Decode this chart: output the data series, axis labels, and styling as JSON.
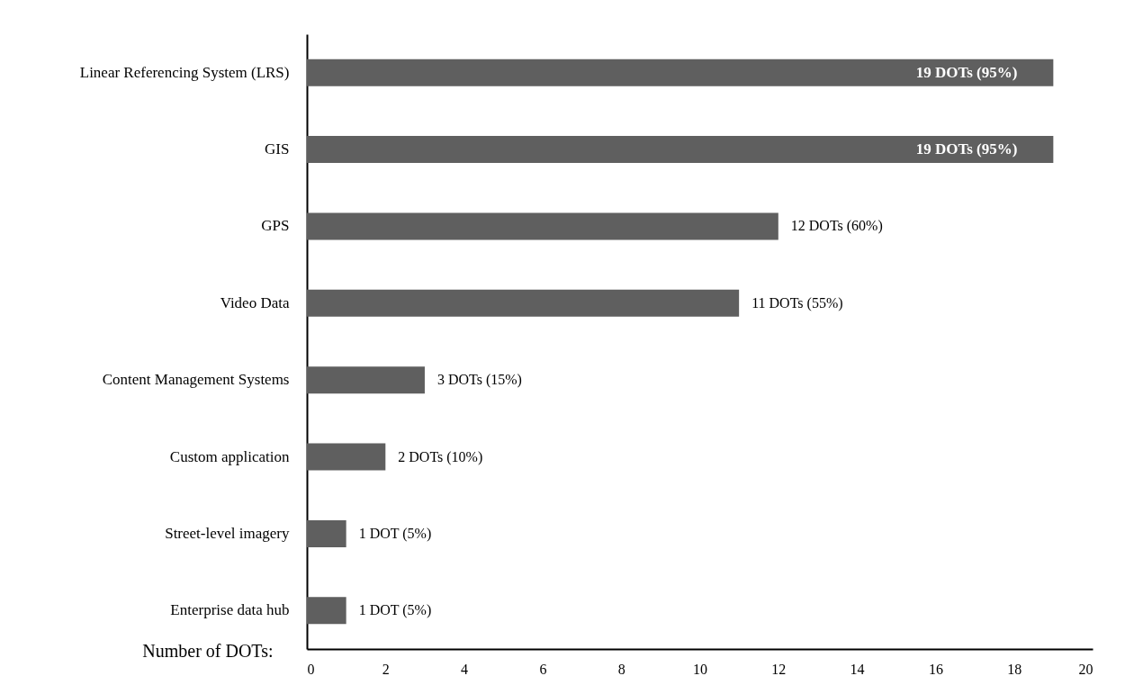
{
  "chart_data": {
    "type": "bar",
    "orientation": "horizontal",
    "xlabel": "Number of DOTs:",
    "categories": [
      "Linear Referencing System (LRS)",
      "GIS",
      "GPS",
      "Video Data",
      "Content Management Systems",
      "Custom application",
      "Street-level imagery",
      "Enterprise data hub"
    ],
    "values": [
      19,
      19,
      12,
      11,
      3,
      2,
      1,
      1
    ],
    "value_labels": [
      "19 DOTs (95%)",
      "19 DOTs (95%)",
      "12 DOTs (60%)",
      "11 DOTs (55%)",
      "3 DOTs (15%)",
      "2 DOTs (10%)",
      "1 DOT (5%)",
      "1 DOT (5%)"
    ],
    "color": "#5f5f5f",
    "xlim": [
      0,
      20
    ],
    "xticks": [
      0,
      2,
      4,
      6,
      8,
      10,
      12,
      14,
      16,
      18,
      20
    ]
  }
}
